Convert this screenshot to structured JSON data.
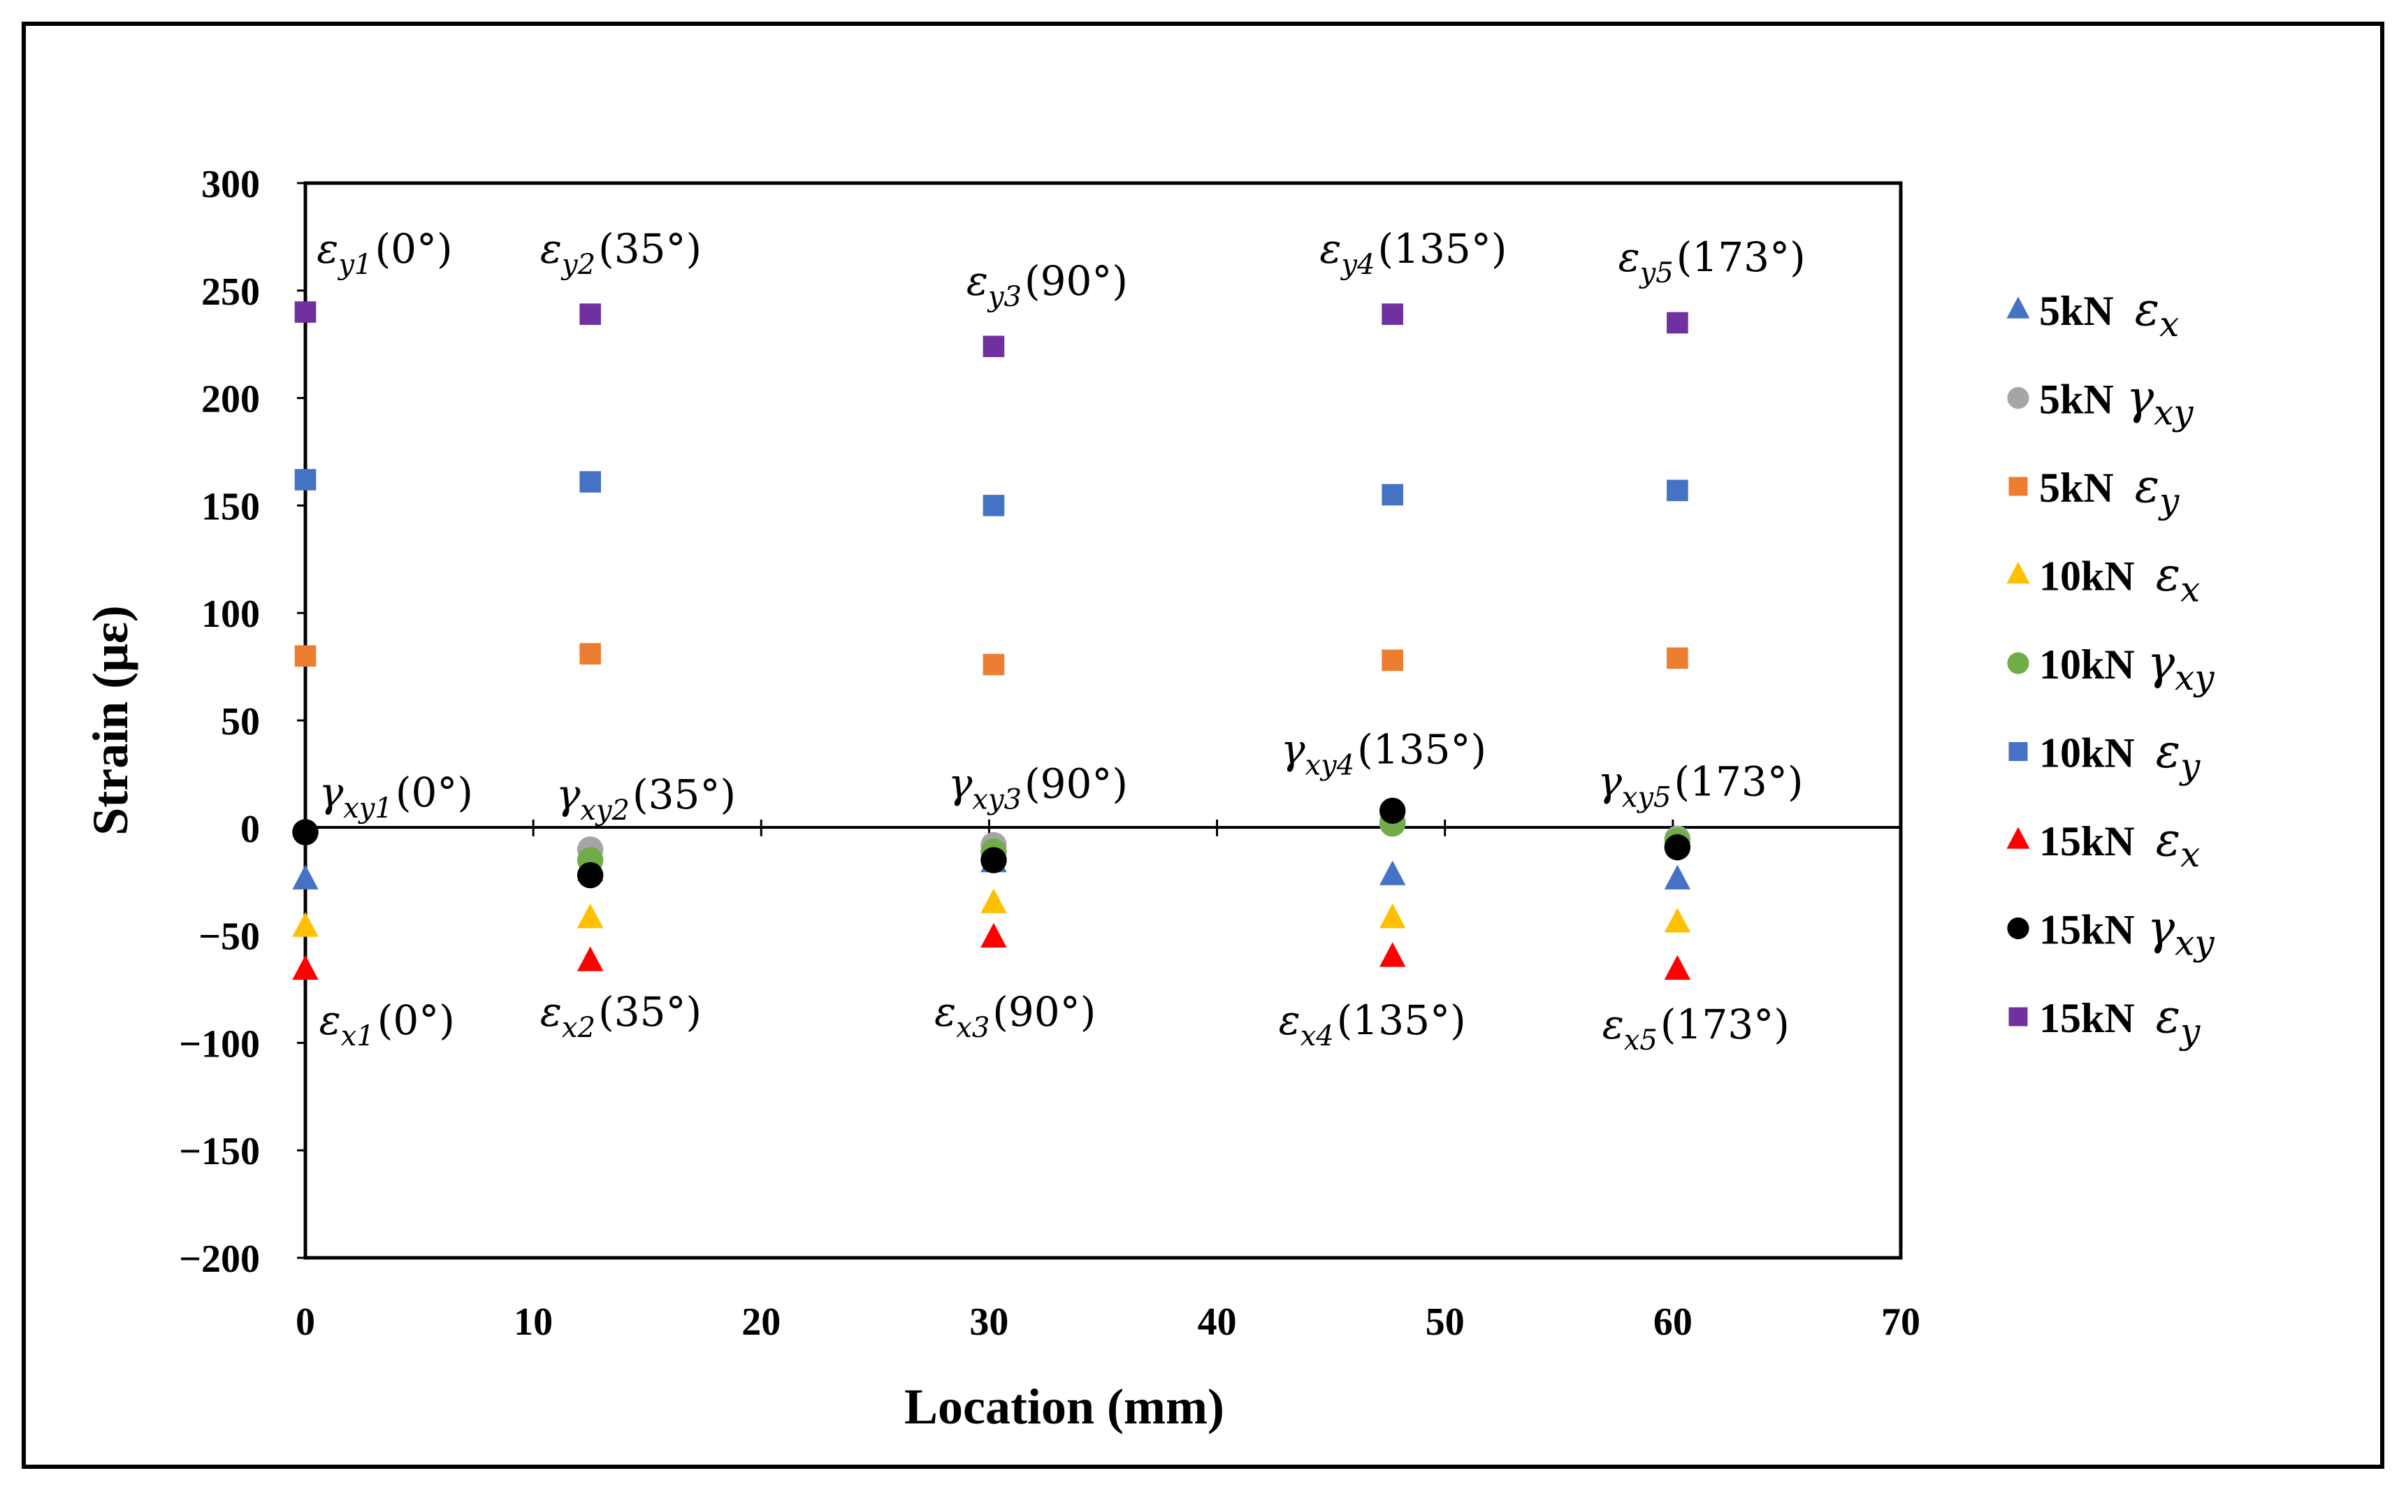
{
  "colors": {
    "blue": "#4472C4",
    "gray": "#A5A5A5",
    "orange": "#ED7D31",
    "gold": "#FFC000",
    "green": "#70AD47",
    "red": "#FF0000",
    "black": "#000000",
    "purple": "#7030A0"
  },
  "chart_data": {
    "type": "scatter",
    "title": "",
    "xlabel": "Location (mm)",
    "ylabel": "Strain (με)",
    "xlim": [
      0,
      70
    ],
    "ylim": [
      -200,
      300
    ],
    "xticks": [
      "0",
      "10",
      "20",
      "30",
      "40",
      "50",
      "60",
      "70"
    ],
    "yticks": [
      "300",
      "250",
      "200",
      "150",
      "100",
      "50",
      "0",
      "−50",
      "−100",
      "−150",
      "−200"
    ],
    "grid": false,
    "legend_position": "right",
    "x": [
      0,
      12.5,
      30.2,
      47.7,
      60.2
    ],
    "series": [
      {
        "load": "5kN",
        "component": "ε",
        "subscript": "x",
        "marker": "triangle",
        "color": "#4472C4",
        "values": [
          -24,
          -20,
          -16,
          -22,
          -24
        ]
      },
      {
        "load": "5kN",
        "component": "γ",
        "subscript": "xy",
        "marker": "circle",
        "color": "#A5A5A5",
        "values": [
          -2,
          -10,
          -8,
          3,
          -5
        ]
      },
      {
        "load": "5kN",
        "component": "ε",
        "subscript": "y",
        "marker": "square",
        "color": "#ED7D31",
        "values": [
          80,
          81,
          76,
          78,
          79
        ]
      },
      {
        "load": "10kN",
        "component": "ε",
        "subscript": "x",
        "marker": "triangle",
        "color": "#FFC000",
        "values": [
          -46,
          -42,
          -35,
          -42,
          -44
        ]
      },
      {
        "load": "10kN",
        "component": "γ",
        "subscript": "xy",
        "marker": "circle",
        "color": "#70AD47",
        "values": [
          -2,
          -15,
          -11,
          2,
          -6
        ]
      },
      {
        "load": "10kN",
        "component": "ε",
        "subscript": "y",
        "marker": "square",
        "color": "#4472C4",
        "values": [
          162,
          161,
          150,
          155,
          157
        ]
      },
      {
        "load": "15kN",
        "component": "ε",
        "subscript": "x",
        "marker": "triangle",
        "color": "#FF0000",
        "values": [
          -66,
          -62,
          -51,
          -60,
          -66
        ]
      },
      {
        "load": "15kN",
        "component": "γ",
        "subscript": "xy",
        "marker": "circle",
        "color": "#000000",
        "values": [
          -2,
          -22,
          -15,
          8,
          -9
        ]
      },
      {
        "load": "15kN",
        "component": "ε",
        "subscript": "y",
        "marker": "square",
        "color": "#7030A0",
        "values": [
          240,
          239,
          224,
          239,
          235
        ]
      }
    ],
    "annotations": [
      {
        "sym": "ε",
        "sub": "y1",
        "angle": "(0°)",
        "x": 0.5,
        "y": 263
      },
      {
        "sym": "ε",
        "sub": "y2",
        "angle": "(35°)",
        "x": 10.3,
        "y": 263
      },
      {
        "sym": "ε",
        "sub": "y3",
        "angle": "(90°)",
        "x": 29.0,
        "y": 248
      },
      {
        "sym": "ε",
        "sub": "y4",
        "angle": "(135°)",
        "x": 44.5,
        "y": 263
      },
      {
        "sym": "ε",
        "sub": "y5",
        "angle": "(173°)",
        "x": 57.6,
        "y": 259
      },
      {
        "sym": "γ",
        "sub": "xy1",
        "angle": "(0°)",
        "x": 0.6,
        "y": 10
      },
      {
        "sym": "γ",
        "sub": "xy2",
        "angle": "(35°)",
        "x": 11.0,
        "y": 9
      },
      {
        "sym": "γ",
        "sub": "xy3",
        "angle": "(90°)",
        "x": 28.2,
        "y": 14
      },
      {
        "sym": "γ",
        "sub": "xy4",
        "angle": "(135°)",
        "x": 42.8,
        "y": 30
      },
      {
        "sym": "γ",
        "sub": "xy5",
        "angle": "(173°)",
        "x": 56.7,
        "y": 15
      },
      {
        "sym": "ε",
        "sub": "x1",
        "angle": "(0°)",
        "x": 0.6,
        "y": -96
      },
      {
        "sym": "ε",
        "sub": "x2",
        "angle": "(35°)",
        "x": 10.3,
        "y": -92
      },
      {
        "sym": "ε",
        "sub": "x3",
        "angle": "(90°)",
        "x": 27.6,
        "y": -92
      },
      {
        "sym": "ε",
        "sub": "x4",
        "angle": "(135°)",
        "x": 42.7,
        "y": -96
      },
      {
        "sym": "ε",
        "sub": "x5",
        "angle": "(173°)",
        "x": 56.9,
        "y": -98
      }
    ]
  }
}
